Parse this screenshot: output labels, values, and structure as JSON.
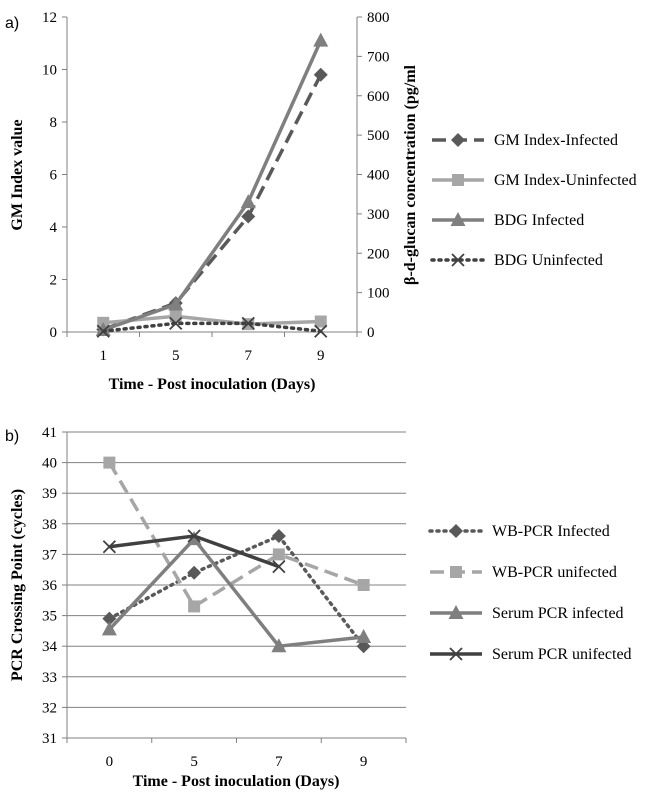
{
  "chart_data": [
    {
      "panel_label": "a)",
      "type": "line",
      "categories": [
        "1",
        "5",
        "7",
        "9"
      ],
      "xlabel": "Time - Post inoculation (Days)",
      "ylabel": "GM Index value",
      "ylabel_right": "β-d-glucan concentration (pg/ml",
      "ylim": [
        0,
        12
      ],
      "yticks": [
        "0",
        "2",
        "4",
        "6",
        "8",
        "10",
        "12"
      ],
      "ylim_right": [
        0,
        800
      ],
      "yticks_right": [
        "0",
        "100",
        "200",
        "300",
        "400",
        "500",
        "600",
        "700",
        "800"
      ],
      "grid": false,
      "legend_position": "right",
      "series": [
        {
          "name": "GM Index-Infected",
          "axis": "left",
          "values": [
            0.1,
            1.1,
            4.4,
            9.8
          ],
          "color": "#595959",
          "dash": "dashed",
          "marker": "diamond"
        },
        {
          "name": "GM Index-Uninfected",
          "axis": "left",
          "values": [
            0.35,
            0.6,
            0.3,
            0.4
          ],
          "color": "#a6a6a6",
          "dash": "solid",
          "marker": "square"
        },
        {
          "name": "BDG Infected",
          "axis": "right",
          "values": [
            5,
            70,
            330,
            740
          ],
          "color": "#7f7f7f",
          "dash": "solid",
          "marker": "triangle"
        },
        {
          "name": "BDG Uninfected",
          "axis": "right",
          "values": [
            2,
            22,
            22,
            2
          ],
          "color": "#404040",
          "dash": "dotted",
          "marker": "x"
        }
      ]
    },
    {
      "panel_label": "b)",
      "type": "line",
      "categories": [
        "0",
        "5",
        "7",
        "9"
      ],
      "xlabel": "Time - Post inoculation (Days)",
      "ylabel": "PCR Crossing Point (cycles)",
      "ylim": [
        31,
        41
      ],
      "yticks": [
        "31",
        "32",
        "33",
        "34",
        "35",
        "36",
        "37",
        "38",
        "39",
        "40",
        "41"
      ],
      "grid": true,
      "legend_position": "right",
      "series": [
        {
          "name": "WB-PCR Infected",
          "values": [
            34.9,
            36.4,
            37.6,
            34.0
          ],
          "color": "#595959",
          "dash": "dotted",
          "marker": "diamond"
        },
        {
          "name": "WB-PCR unifected",
          "values": [
            40.0,
            35.3,
            37.0,
            36.0
          ],
          "color": "#a6a6a6",
          "dash": "dashed",
          "marker": "square"
        },
        {
          "name": "Serum PCR infected",
          "values": [
            34.55,
            37.5,
            34.0,
            34.3
          ],
          "color": "#7f7f7f",
          "dash": "solid",
          "marker": "triangle"
        },
        {
          "name": "Serum PCR unifected",
          "values": [
            37.25,
            37.6,
            36.6,
            null
          ],
          "color": "#404040",
          "dash": "solid",
          "marker": "x"
        }
      ]
    }
  ]
}
